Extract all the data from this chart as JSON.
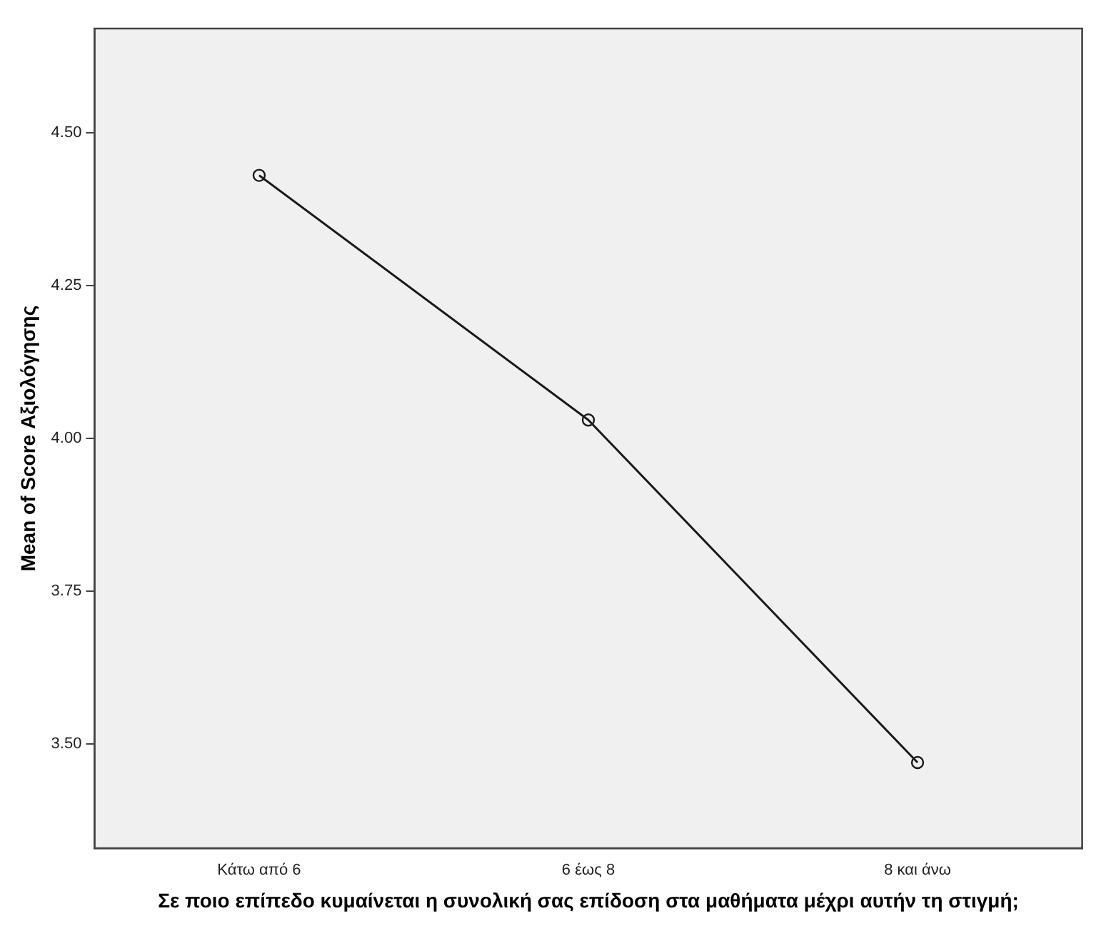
{
  "chart_data": {
    "type": "line",
    "xlabel": "Σε ποιο επίπεδο κυμαίνεται η συνολική σας επίδοση στα μαθήματα μέχρι αυτήν τη στιγμή;",
    "ylabel": "Mean of Score Αξιολόγησης",
    "categories": [
      "Κάτω από 6",
      "6 έως 8",
      "8 και άνω"
    ],
    "series": [
      {
        "color": "#1a1a1a",
        "values": [
          4.43,
          4.03,
          3.47
        ]
      }
    ],
    "ylim": [
      3.33,
      4.67
    ],
    "yticks": [
      {
        "value": 3.5,
        "label": "3.50"
      },
      {
        "value": 3.75,
        "label": "3.75"
      },
      {
        "value": 4.0,
        "label": "4.00"
      },
      {
        "value": 4.25,
        "label": "4.25"
      },
      {
        "value": 4.5,
        "label": "4.50"
      }
    ],
    "grid": false,
    "legend": false,
    "marker": "circle",
    "line_style": "solid"
  }
}
